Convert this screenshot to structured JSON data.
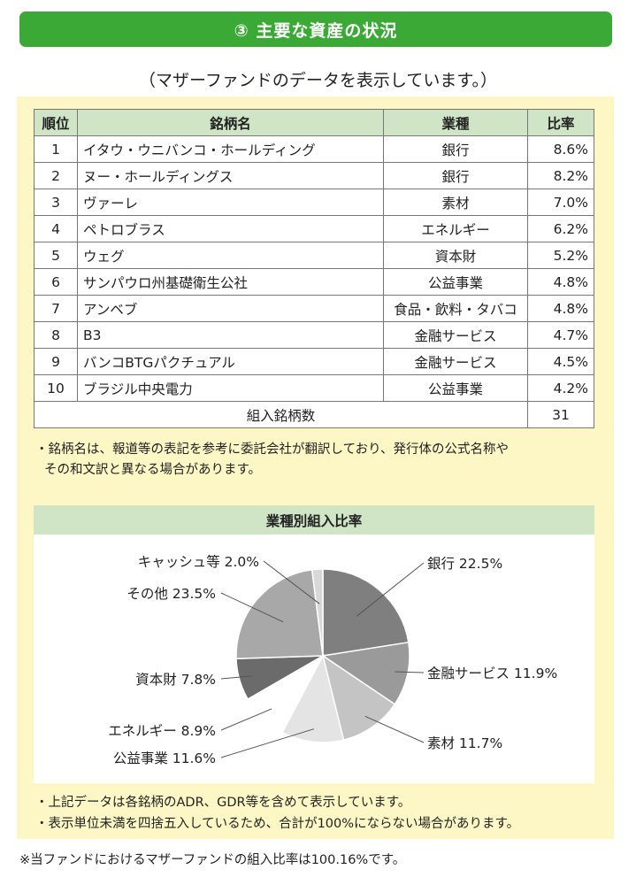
{
  "section_title": "③ 主要な資産の状況",
  "subtitle": "（マザーファンドのデータを表示しています。）",
  "table": {
    "headers": [
      "順位",
      "銘柄名",
      "業種",
      "比率"
    ],
    "rows": [
      {
        "rank": "1",
        "name": "イタウ・ウニバンコ・ホールディング",
        "industry": "銀行",
        "rate": "8.6%"
      },
      {
        "rank": "2",
        "name": "ヌー・ホールディングス",
        "industry": "銀行",
        "rate": "8.2%"
      },
      {
        "rank": "3",
        "name": "ヴァーレ",
        "industry": "素材",
        "rate": "7.0%"
      },
      {
        "rank": "4",
        "name": "ペトロブラス",
        "industry": "エネルギー",
        "rate": "6.2%"
      },
      {
        "rank": "5",
        "name": "ウェグ",
        "industry": "資本財",
        "rate": "5.2%"
      },
      {
        "rank": "6",
        "name": "サンパウロ州基礎衛生公社",
        "industry": "公益事業",
        "rate": "4.8%"
      },
      {
        "rank": "7",
        "name": "アンベブ",
        "industry": "食品・飲料・タバコ",
        "rate": "4.8%"
      },
      {
        "rank": "8",
        "name": "B3",
        "industry": "金融サービス",
        "rate": "4.7%"
      },
      {
        "rank": "9",
        "name": "バンコBTGパクチュアル",
        "industry": "金融サービス",
        "rate": "4.5%"
      },
      {
        "rank": "10",
        "name": "ブラジル中央電力",
        "industry": "公益事業",
        "rate": "4.2%"
      }
    ],
    "total_label": "組入銘柄数",
    "total_value": "31"
  },
  "note1": [
    "・銘柄名は、報道等の表記を参考に委託会社が翻訳しており、発行体の公式名称や",
    "その和文訳と異なる場合があります。"
  ],
  "chart_data": {
    "type": "pie",
    "title": "業種別組入比率",
    "slices": [
      {
        "label": "銀行",
        "value": 22.5,
        "display": "銀行 22.5%",
        "color": "#7f7f7f"
      },
      {
        "label": "金融サービス",
        "value": 11.9,
        "display": "金融サービス 11.9%",
        "color": "#9a9a9a"
      },
      {
        "label": "素材",
        "value": 11.7,
        "display": "素材 11.7%",
        "color": "#c4c4c4"
      },
      {
        "label": "公益事業",
        "value": 11.6,
        "display": "公益事業 11.6%",
        "color": "#e4e4e4"
      },
      {
        "label": "エネルギー",
        "value": 8.9,
        "display": "エネルギー 8.9%",
        "color": "#ffffff"
      },
      {
        "label": "資本財",
        "value": 7.8,
        "display": "資本財 7.8%",
        "color": "#6b6b6b"
      },
      {
        "label": "その他",
        "value": 23.5,
        "display": "その他 23.5%",
        "color": "#a8a8a8"
      },
      {
        "label": "キャッシュ等",
        "value": 2.0,
        "display": "キャッシュ等 2.0%",
        "color": "#d8d8d8"
      }
    ]
  },
  "note2": [
    "・上記データは各銘柄のADR、GDR等を含めて表示しています。",
    "・表示単位未満を四捨五入しているため、合計が100%にならない場合があります。"
  ],
  "footnote": "※当ファンドにおけるマザーファンドの組入比率は100.16%です。"
}
